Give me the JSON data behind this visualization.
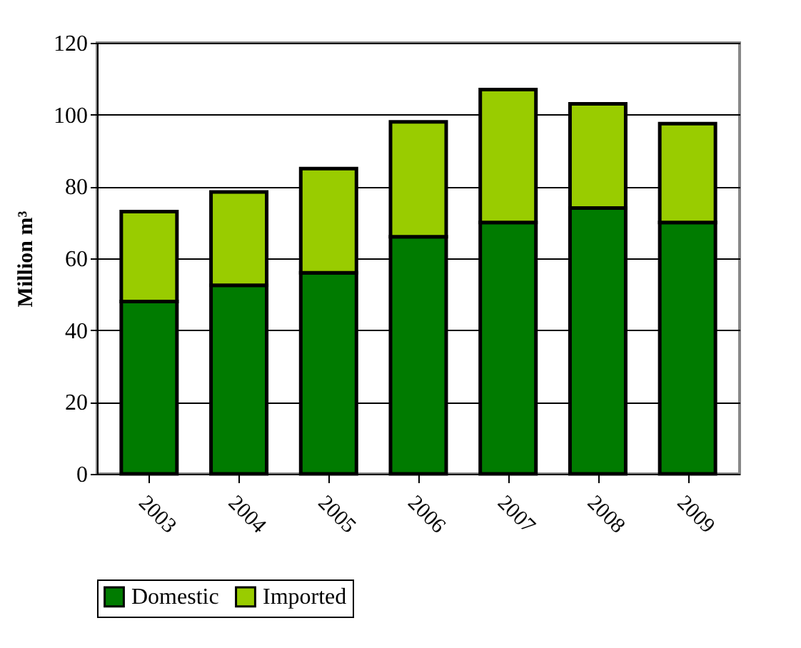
{
  "chart_data": {
    "type": "bar",
    "stacked": true,
    "ylabel": "Million m³",
    "categories": [
      "2003",
      "2004",
      "2005",
      "2006",
      "2007",
      "2008",
      "2009"
    ],
    "series": [
      {
        "name": "Domestic",
        "color": "#007b00",
        "values": [
          48,
          52.5,
          56,
          66,
          70,
          74,
          70
        ]
      },
      {
        "name": "Imported",
        "color": "#99cc00",
        "values": [
          25,
          26,
          29,
          32,
          37,
          29,
          27.5
        ]
      }
    ],
    "ylim": [
      0,
      120
    ],
    "yticks": [
      0,
      20,
      40,
      60,
      80,
      100,
      120
    ],
    "grid": "y",
    "legend": "bottom"
  }
}
